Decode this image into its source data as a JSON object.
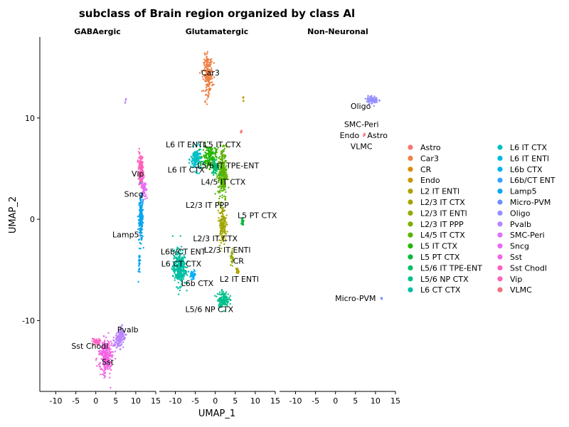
{
  "chart_data": {
    "type": "scatter",
    "title": "subclass of Brain region organized by class Al",
    "xlabel": "UMAP_1",
    "ylabel": "UMAP_2",
    "xlim": [
      -14,
      15
    ],
    "ylim": [
      -17,
      18
    ],
    "xticks": [
      -10,
      -5,
      0,
      5,
      10,
      15
    ],
    "yticks": [
      -10,
      0,
      10
    ],
    "xtick_labels": [
      "-10",
      "-5",
      "0",
      "5",
      "10",
      "15"
    ],
    "ytick_labels": [
      "-10",
      "0",
      "10"
    ],
    "grid": false,
    "legend_position": "right",
    "facets": [
      "GABAergic",
      "Glutamatergic",
      "Non-Neuronal"
    ],
    "legend_entries": [
      {
        "name": "Astro",
        "color": "#F8766D"
      },
      {
        "name": "Car3",
        "color": "#EE8043"
      },
      {
        "name": "CR",
        "color": "#DE8C00"
      },
      {
        "name": "Endo",
        "color": "#C89800"
      },
      {
        "name": "L2 IT ENTl",
        "color": "#B0A200"
      },
      {
        "name": "L2/3 IT CTX",
        "color": "#A3A500"
      },
      {
        "name": "L2/3 IT ENTl",
        "color": "#93AA00"
      },
      {
        "name": "L2/3 IT PPP",
        "color": "#7CAE00"
      },
      {
        "name": "L4/5 IT CTX",
        "color": "#5BB300"
      },
      {
        "name": "L5 IT CTX",
        "color": "#25B600"
      },
      {
        "name": "L5 PT CTX",
        "color": "#00BA38"
      },
      {
        "name": "L5/6 IT TPE-ENT",
        "color": "#00BE6C"
      },
      {
        "name": "L5/6 NP CTX",
        "color": "#00C08B"
      },
      {
        "name": "L6 CT CTX",
        "color": "#00BFA3"
      },
      {
        "name": "L6 IT CTX",
        "color": "#00BFC4"
      },
      {
        "name": "L6 IT ENTl",
        "color": "#00B9E3"
      },
      {
        "name": "L6b CTX",
        "color": "#00B0F6"
      },
      {
        "name": "L6b/CT ENT",
        "color": "#35A2FF"
      },
      {
        "name": "Lamp5",
        "color": "#0AA6EF"
      },
      {
        "name": "Micro-PVM",
        "color": "#6F8CFF"
      },
      {
        "name": "Oligo",
        "color": "#9590FF"
      },
      {
        "name": "Pvalb",
        "color": "#B983FF"
      },
      {
        "name": "SMC-Peri",
        "color": "#DC71FA"
      },
      {
        "name": "Sncg",
        "color": "#E76BF3"
      },
      {
        "name": "Sst",
        "color": "#F564E3"
      },
      {
        "name": "Sst Chodl",
        "color": "#FF61C3"
      },
      {
        "name": "Vip",
        "color": "#FF62BC"
      },
      {
        "name": "VLMC",
        "color": "#F2707F"
      }
    ],
    "clusters": [
      {
        "facet": 0,
        "cls": "Vip",
        "color": "#FF62BC",
        "cx": 11.3,
        "cy": 4.8,
        "sx": 0.6,
        "sy": 1.6,
        "rot": 0.1,
        "n": 170
      },
      {
        "facet": 0,
        "cls": "Sncg",
        "color": "#E76BF3",
        "cx": 12.0,
        "cy": 3.0,
        "sx": 0.5,
        "sy": 0.9,
        "rot": 0.1,
        "n": 60
      },
      {
        "facet": 0,
        "cls": "Lamp5",
        "color": "#0AA6EF",
        "cx": 11.3,
        "cy": 0.0,
        "sx": 0.5,
        "sy": 2.0,
        "rot": 0.0,
        "n": 200
      },
      {
        "facet": 0,
        "cls": "Lamp5",
        "color": "#0AA6EF",
        "cx": 10.9,
        "cy": -4.5,
        "sx": 0.2,
        "sy": 1.2,
        "rot": 0.0,
        "n": 30
      },
      {
        "facet": 0,
        "cls": "Sst",
        "color": "#F564E3",
        "cx": 2.5,
        "cy": -13.5,
        "sx": 1.5,
        "sy": 1.5,
        "rot": 0.5,
        "n": 300
      },
      {
        "facet": 0,
        "cls": "Sst Chodl",
        "color": "#FF61C3",
        "cx": 0.0,
        "cy": -12.1,
        "sx": 0.9,
        "sy": 0.3,
        "rot": 0.0,
        "n": 40
      },
      {
        "facet": 0,
        "cls": "Pvalb",
        "color": "#B983FF",
        "cx": 6.0,
        "cy": -11.8,
        "sx": 1.3,
        "sy": 0.8,
        "rot": 0.5,
        "n": 150
      },
      {
        "facet": 0,
        "cls": "Pvalb",
        "color": "#B983FF",
        "cx": 7.5,
        "cy": 11.7,
        "sx": 0.2,
        "sy": 0.2,
        "rot": 0.0,
        "n": 5
      },
      {
        "facet": 1,
        "cls": "Car3",
        "color": "#EE8043",
        "cx": -1.8,
        "cy": 14.3,
        "sx": 1.0,
        "sy": 1.7,
        "rot": 0.0,
        "n": 220
      },
      {
        "facet": 1,
        "cls": "L6 IT CTX",
        "color": "#00BFC4",
        "cx": -4.8,
        "cy": 5.9,
        "sx": 1.2,
        "sy": 1.0,
        "rot": 0.0,
        "n": 170
      },
      {
        "facet": 1,
        "cls": "L5 IT CTX",
        "color": "#25B600",
        "cx": -1.5,
        "cy": 6.2,
        "sx": 1.5,
        "sy": 1.0,
        "rot": 0.0,
        "n": 160
      },
      {
        "facet": 1,
        "cls": "L4/5 IT CTX",
        "color": "#5BB300",
        "cx": 1.8,
        "cy": 4.5,
        "sx": 1.0,
        "sy": 2.4,
        "rot": 0.0,
        "n": 280
      },
      {
        "facet": 1,
        "cls": "L5/6 IT TPE-ENT",
        "color": "#00BE6C",
        "cx": 0.0,
        "cy": 5.2,
        "sx": 0.8,
        "sy": 0.7,
        "rot": 0.0,
        "n": 70
      },
      {
        "facet": 1,
        "cls": "L2/3 IT CTX",
        "color": "#A3A500",
        "cx": 1.8,
        "cy": -0.5,
        "sx": 0.8,
        "sy": 1.6,
        "rot": 0.0,
        "n": 160
      },
      {
        "facet": 1,
        "cls": "L5 PT CTX",
        "color": "#00BA38",
        "cx": 6.8,
        "cy": -0.2,
        "sx": 0.3,
        "sy": 0.4,
        "rot": 0.0,
        "n": 25
      },
      {
        "facet": 1,
        "cls": "L2/3 IT ENTl",
        "color": "#93AA00",
        "cx": 4.2,
        "cy": -3.8,
        "sx": 0.3,
        "sy": 0.8,
        "rot": 0.0,
        "n": 30
      },
      {
        "facet": 1,
        "cls": "L2 IT ENTl",
        "color": "#B0A200",
        "cx": 5.5,
        "cy": -5.1,
        "sx": 0.3,
        "sy": 0.3,
        "rot": 0.0,
        "n": 15
      },
      {
        "facet": 1,
        "cls": "L6 CT CTX",
        "color": "#00BFA3",
        "cx": -9.0,
        "cy": -4.8,
        "sx": 1.5,
        "sy": 1.6,
        "rot": 0.0,
        "n": 320
      },
      {
        "facet": 1,
        "cls": "L6b CTX",
        "color": "#00B0F6",
        "cx": -5.5,
        "cy": -5.5,
        "sx": 0.6,
        "sy": 0.4,
        "rot": 0.0,
        "n": 40
      },
      {
        "facet": 1,
        "cls": "L5/6 NP CTX",
        "color": "#00C08B",
        "cx": 2.0,
        "cy": -7.9,
        "sx": 1.3,
        "sy": 0.7,
        "rot": 0.0,
        "n": 140
      },
      {
        "facet": 1,
        "cls": "Endo",
        "color": "#C89800",
        "cx": 7.0,
        "cy": 11.9,
        "sx": 0.1,
        "sy": 0.3,
        "rot": 0.0,
        "n": 6
      },
      {
        "facet": 1,
        "cls": "Astro",
        "color": "#F8766D",
        "cx": 6.5,
        "cy": 8.6,
        "sx": 0.2,
        "sy": 0.2,
        "rot": 0.0,
        "n": 5
      },
      {
        "facet": 2,
        "cls": "Oligo",
        "color": "#9590FF",
        "cx": 9.2,
        "cy": 11.8,
        "sx": 1.3,
        "sy": 0.35,
        "rot": 0.0,
        "n": 90
      },
      {
        "facet": 2,
        "cls": "Astro",
        "color": "#F8766D",
        "cx": 7.2,
        "cy": 8.4,
        "sx": 0.2,
        "sy": 0.2,
        "rot": 0.0,
        "n": 5
      },
      {
        "facet": 2,
        "cls": "Micro-PVM",
        "color": "#6F8CFF",
        "cx": 11.6,
        "cy": -7.8,
        "sx": 0.2,
        "sy": 0.1,
        "rot": 0.0,
        "n": 4
      }
    ],
    "labels": [
      {
        "facet": 0,
        "text": "Vip",
        "x": 10.5,
        "y": 4.5
      },
      {
        "facet": 0,
        "text": "Sncg",
        "x": 9.5,
        "y": 2.5
      },
      {
        "facet": 0,
        "text": "Lamp5",
        "x": 7.5,
        "y": -1.5
      },
      {
        "facet": 0,
        "text": "Pvalb",
        "x": 8.0,
        "y": -10.9
      },
      {
        "facet": 0,
        "text": "Sst Chodl",
        "x": -1.5,
        "y": -12.5
      },
      {
        "facet": 0,
        "text": "Sst",
        "x": 3.0,
        "y": -14.1
      },
      {
        "facet": 1,
        "text": "Car3",
        "x": -1.2,
        "y": 14.5
      },
      {
        "facet": 1,
        "text": "L6 IT ENTl",
        "x": -7.5,
        "y": 7.4
      },
      {
        "facet": 1,
        "text": "L5 IT CTX",
        "x": 1.8,
        "y": 7.4
      },
      {
        "facet": 1,
        "text": "L6 IT CTX",
        "x": -7.3,
        "y": 4.9
      },
      {
        "facet": 1,
        "text": "L5/6 IT TPE-ENT",
        "x": 3.2,
        "y": 5.3
      },
      {
        "facet": 1,
        "text": "L4/5 IT CTX",
        "x": 2.0,
        "y": 3.7
      },
      {
        "facet": 1,
        "text": "L2/3 IT PPP",
        "x": -2.0,
        "y": 1.4
      },
      {
        "facet": 1,
        "text": "L5 PT CTX",
        "x": 10.5,
        "y": 0.4
      },
      {
        "facet": 1,
        "text": "L2/3 IT CTX",
        "x": 0.0,
        "y": -1.9
      },
      {
        "facet": 1,
        "text": "L6b/CT ENT",
        "x": -8.0,
        "y": -3.2
      },
      {
        "facet": 1,
        "text": "L2/3 IT ENTl",
        "x": 3.0,
        "y": -3.0
      },
      {
        "facet": 1,
        "text": "CR",
        "x": 5.8,
        "y": -4.1
      },
      {
        "facet": 1,
        "text": "L6 CT CTX",
        "x": -8.5,
        "y": -4.4
      },
      {
        "facet": 1,
        "text": "L6b CTX",
        "x": -4.5,
        "y": -6.3
      },
      {
        "facet": 1,
        "text": "L2 IT ENTl",
        "x": 6.0,
        "y": -5.9
      },
      {
        "facet": 1,
        "text": "L5/6 NP CTX",
        "x": -1.5,
        "y": -8.9
      },
      {
        "facet": 2,
        "text": "Oligo",
        "x": 6.3,
        "y": 11.2
      },
      {
        "facet": 2,
        "text": "SMC-Peri",
        "x": 6.5,
        "y": 9.4
      },
      {
        "facet": 2,
        "text": "Endo",
        "x": 3.5,
        "y": 8.3
      },
      {
        "facet": 2,
        "text": "Astro",
        "x": 10.5,
        "y": 8.3
      },
      {
        "facet": 2,
        "text": "VLMC",
        "x": 6.5,
        "y": 7.2
      },
      {
        "facet": 2,
        "text": "Micro-PVM",
        "x": 5.0,
        "y": -7.8
      }
    ]
  }
}
